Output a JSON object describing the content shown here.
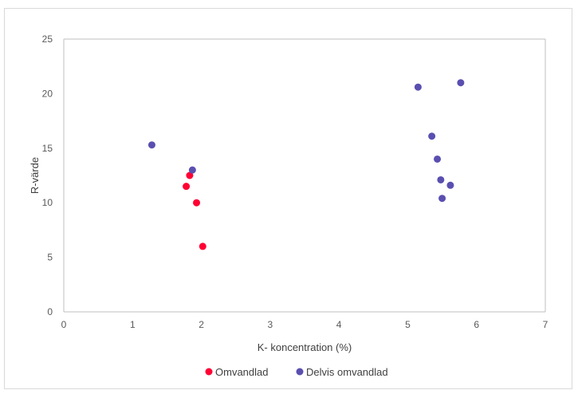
{
  "chart_data": {
    "type": "scatter",
    "title": "",
    "xlabel": "K- koncentration (%)",
    "ylabel": "R-värde",
    "xlim": [
      0,
      7
    ],
    "ylim": [
      0,
      25
    ],
    "xticks": [
      "0",
      "1",
      "2",
      "3",
      "4",
      "5",
      "6",
      "7"
    ],
    "yticks": [
      "0",
      "5",
      "10",
      "15",
      "20",
      "25"
    ],
    "grid": false,
    "legend_position": "bottom",
    "series": [
      {
        "name": "Omvandlad",
        "color": "#ff0033",
        "points": [
          {
            "x": 1.83,
            "y": 12.5
          },
          {
            "x": 1.78,
            "y": 11.5
          },
          {
            "x": 1.93,
            "y": 10.0
          },
          {
            "x": 2.02,
            "y": 6.0
          }
        ]
      },
      {
        "name": "Delvis omvandlad",
        "color": "#5a4fb0",
        "points": [
          {
            "x": 1.28,
            "y": 15.3
          },
          {
            "x": 1.87,
            "y": 13.0
          },
          {
            "x": 5.15,
            "y": 20.6
          },
          {
            "x": 5.77,
            "y": 21.0
          },
          {
            "x": 5.35,
            "y": 16.1
          },
          {
            "x": 5.43,
            "y": 14.0
          },
          {
            "x": 5.48,
            "y": 12.1
          },
          {
            "x": 5.62,
            "y": 11.6
          },
          {
            "x": 5.5,
            "y": 10.4
          }
        ]
      }
    ]
  }
}
